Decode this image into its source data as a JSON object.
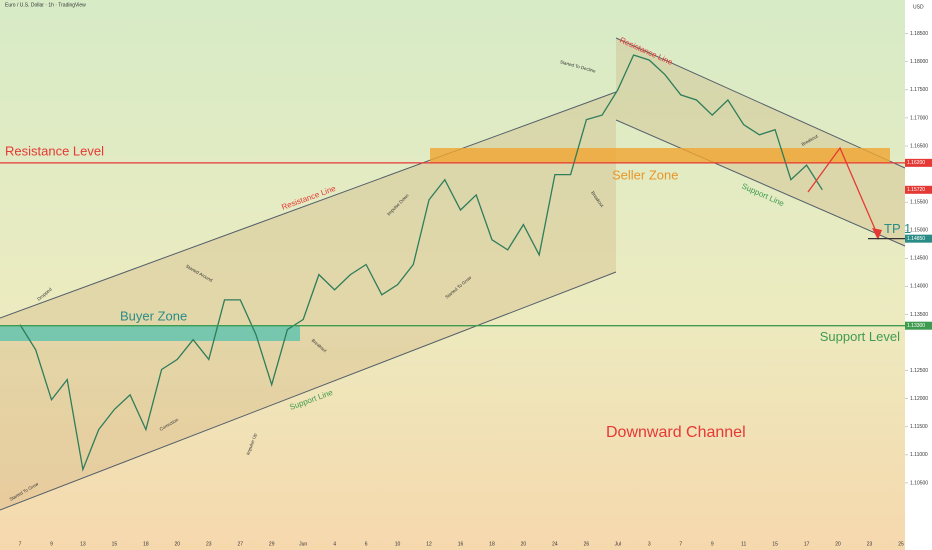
{
  "header": {
    "symbol": "Euro / U.S. Dollar · 1h · TradingView",
    "currency": "USD"
  },
  "chart_data": {
    "type": "line",
    "color": "#2e7d5b",
    "categories": [
      "7",
      null,
      "9",
      null,
      "13",
      null,
      "15",
      null,
      "18",
      null,
      "20",
      null,
      "23",
      null,
      "27",
      null,
      "29",
      null,
      "Jun",
      null,
      "4",
      null,
      "6",
      null,
      "10",
      null,
      "12",
      null,
      "16",
      null,
      "18",
      null,
      "20",
      null,
      "24",
      null,
      "26",
      null,
      "Jul",
      null,
      "3",
      null,
      "7",
      null,
      "9",
      null,
      "11",
      null,
      "15",
      null,
      "17",
      null,
      "20",
      null,
      "23",
      null,
      "25"
    ],
    "values": [
      1.1332,
      1.1287,
      1.1198,
      1.1234,
      1.1074,
      1.1145,
      1.1181,
      1.1207,
      1.1145,
      1.1252,
      1.127,
      1.1305,
      1.127,
      1.1376,
      1.1376,
      1.1314,
      1.1225,
      1.1323,
      1.1341,
      1.1421,
      1.1394,
      1.1421,
      1.1439,
      1.1385,
      1.1403,
      1.1439,
      1.1554,
      1.159,
      1.1536,
      1.1563,
      1.1483,
      1.1465,
      1.151,
      1.1456,
      1.1599,
      1.1599,
      1.1697,
      1.1705,
      1.175,
      1.1812,
      1.1803,
      1.1777,
      1.1741,
      1.1732,
      1.1705,
      1.1732,
      1.1688,
      1.167,
      1.1679,
      1.159,
      1.1616,
      1.1572,
      null,
      null,
      null,
      null,
      null
    ],
    "ylim": [
      1.0984,
      1.191
    ],
    "yticks": [
      {
        "value": 1.185,
        "label": "1.18500"
      },
      {
        "value": 1.18,
        "label": "1.18000"
      },
      {
        "value": 1.175,
        "label": "1.17500"
      },
      {
        "value": 1.17,
        "label": "1.17000"
      },
      {
        "value": 1.165,
        "label": "1.16500"
      },
      {
        "value": 1.155,
        "label": "1.15500"
      },
      {
        "value": 1.15,
        "label": "1.15000"
      },
      {
        "value": 1.145,
        "label": "1.14500"
      },
      {
        "value": 1.14,
        "label": "1.14000"
      },
      {
        "value": 1.135,
        "label": "1.13500"
      },
      {
        "value": 1.125,
        "label": "1.12500"
      },
      {
        "value": 1.12,
        "label": "1.12000"
      },
      {
        "value": 1.115,
        "label": "1.11500"
      },
      {
        "value": 1.11,
        "label": "1.11000"
      },
      {
        "value": 1.105,
        "label": "1.10500"
      }
    ],
    "levels": [
      {
        "name": "Resistance Level",
        "value": 1.162,
        "label": "1.16200",
        "color": "#e53935"
      },
      {
        "name": "Support Level",
        "value": 1.133,
        "label": "1.13300",
        "color": "#3f9b4f"
      }
    ],
    "last_price": {
      "value": 1.1572,
      "label": "1.15720",
      "color": "#e53935"
    },
    "target": {
      "name": "TP 1",
      "value": 1.1485,
      "label": "1.14850",
      "color": "#2a8c86"
    },
    "annotations": {
      "buyer_zone": "Buyer Zone",
      "seller_zone": "Seller Zone",
      "downward_channel": "Downward Channel",
      "resistance_line_1": "Resistance Line",
      "support_line_1": "Support Line",
      "resistance_line_2": "Resistance Line",
      "support_line_2": "Support Line",
      "dropped": "Dropped",
      "started_to_grow_1": "Started To Grow",
      "correction": "Correction",
      "started_around": "Started Around",
      "impulse_up": "Impulse Up",
      "breakout_1": "Breakout",
      "impulse_down": "Impulse Down",
      "started_to_grow_2": "Started To Grow",
      "breakout_2": "Breakout",
      "started_to_decline": "Started To Decline",
      "breakout_3": "Breakout"
    }
  }
}
